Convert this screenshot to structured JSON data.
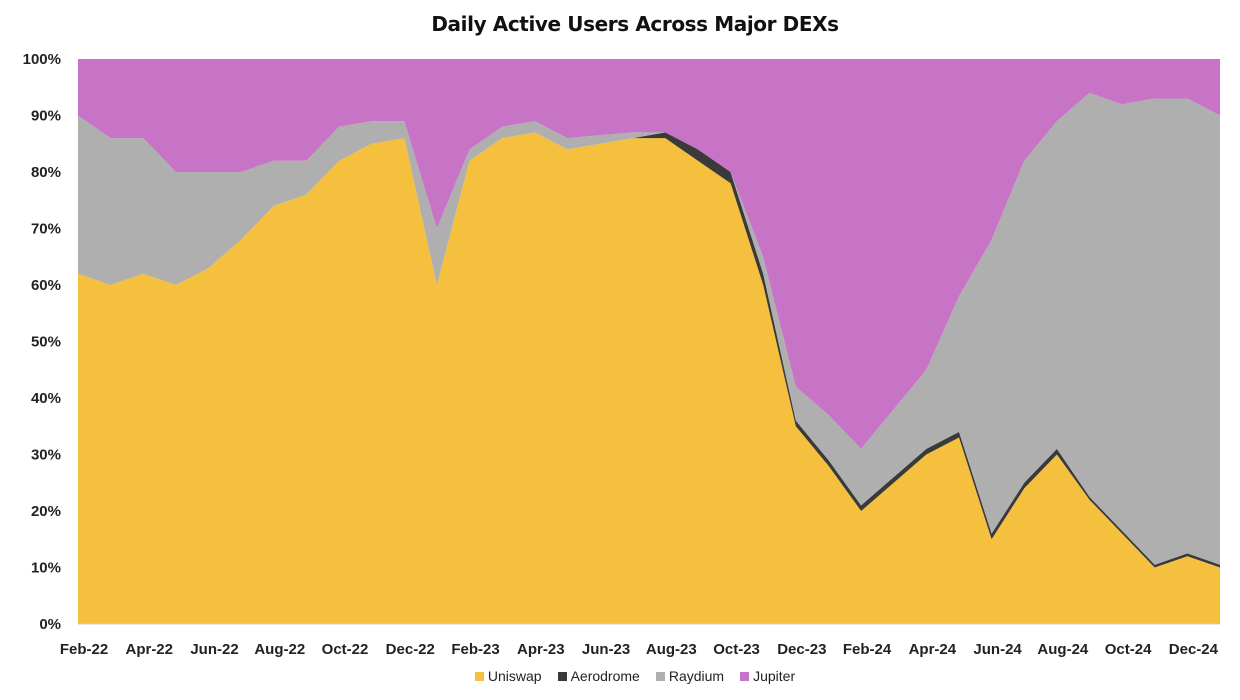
{
  "chart_data": {
    "type": "area",
    "stacked": "percent",
    "title": "Daily Active Users Across Major DEXs",
    "xlabel": "",
    "ylabel": "",
    "ylim": [
      0,
      100
    ],
    "x_ticks": [
      "Feb-22",
      "Apr-22",
      "Jun-22",
      "Aug-22",
      "Oct-22",
      "Dec-22",
      "Feb-23",
      "Apr-23",
      "Jun-23",
      "Aug-23",
      "Oct-23",
      "Dec-23",
      "Feb-24",
      "Apr-24",
      "Jun-24",
      "Aug-24",
      "Oct-24",
      "Dec-24"
    ],
    "y_ticks": [
      "0%",
      "10%",
      "20%",
      "30%",
      "40%",
      "50%",
      "60%",
      "70%",
      "80%",
      "90%",
      "100%"
    ],
    "x": [
      "Feb-22",
      "Mar-22",
      "Apr-22",
      "May-22",
      "Jun-22",
      "Jul-22",
      "Aug-22",
      "Sep-22",
      "Oct-22",
      "Nov-22",
      "Dec-22",
      "Jan-23",
      "Feb-23",
      "Mar-23",
      "Apr-23",
      "May-23",
      "Jun-23",
      "Jul-23",
      "Aug-23",
      "Sep-23",
      "Oct-23",
      "Nov-23",
      "Dec-23",
      "Jan-24",
      "Feb-24",
      "Mar-24",
      "Apr-24",
      "May-24",
      "Jun-24",
      "Jul-24",
      "Aug-24",
      "Sep-24",
      "Oct-24",
      "Nov-24",
      "Dec-24",
      "Jan-25"
    ],
    "series": [
      {
        "name": "Uniswap",
        "color": "#F4C03E",
        "values": [
          62,
          60,
          62,
          60,
          63,
          68,
          74,
          76,
          82,
          85,
          86,
          60,
          82,
          86,
          87,
          84,
          85,
          86,
          86,
          82,
          78,
          60,
          35,
          28,
          20,
          25,
          30,
          33,
          15,
          24,
          30,
          22,
          16,
          10,
          12,
          10
        ]
      },
      {
        "name": "Aerodrome",
        "color": "#3A3A3A",
        "values": [
          0,
          0,
          0,
          0,
          0,
          0,
          0,
          0,
          0,
          0,
          0,
          0,
          0,
          0,
          0,
          0,
          0,
          0,
          1,
          2,
          2,
          2,
          1,
          1,
          1,
          1,
          1,
          1,
          1,
          1,
          1,
          0.5,
          0.5,
          0.5,
          0.5,
          0.5
        ]
      },
      {
        "name": "Raydium",
        "color": "#AFAFAF",
        "values": [
          28,
          26,
          24,
          20,
          17,
          12,
          8,
          6,
          6,
          4,
          3,
          10,
          2,
          2,
          2,
          2,
          1.5,
          1,
          0,
          0,
          0,
          3,
          6,
          8,
          10,
          12,
          14,
          24,
          52,
          57,
          58,
          71.5,
          75.5,
          82.5,
          80.5,
          79.5
        ]
      },
      {
        "name": "Jupiter",
        "color": "#C774C6",
        "values": [
          10,
          14,
          14,
          20,
          20,
          20,
          18,
          18,
          12,
          11,
          11,
          30,
          16,
          12,
          11,
          14,
          13.5,
          13,
          13,
          16,
          20,
          35,
          58,
          63,
          69,
          62,
          55,
          42,
          32,
          18,
          11,
          6,
          8,
          7,
          7,
          10
        ]
      }
    ],
    "legend_position": "bottom",
    "grid": false
  }
}
